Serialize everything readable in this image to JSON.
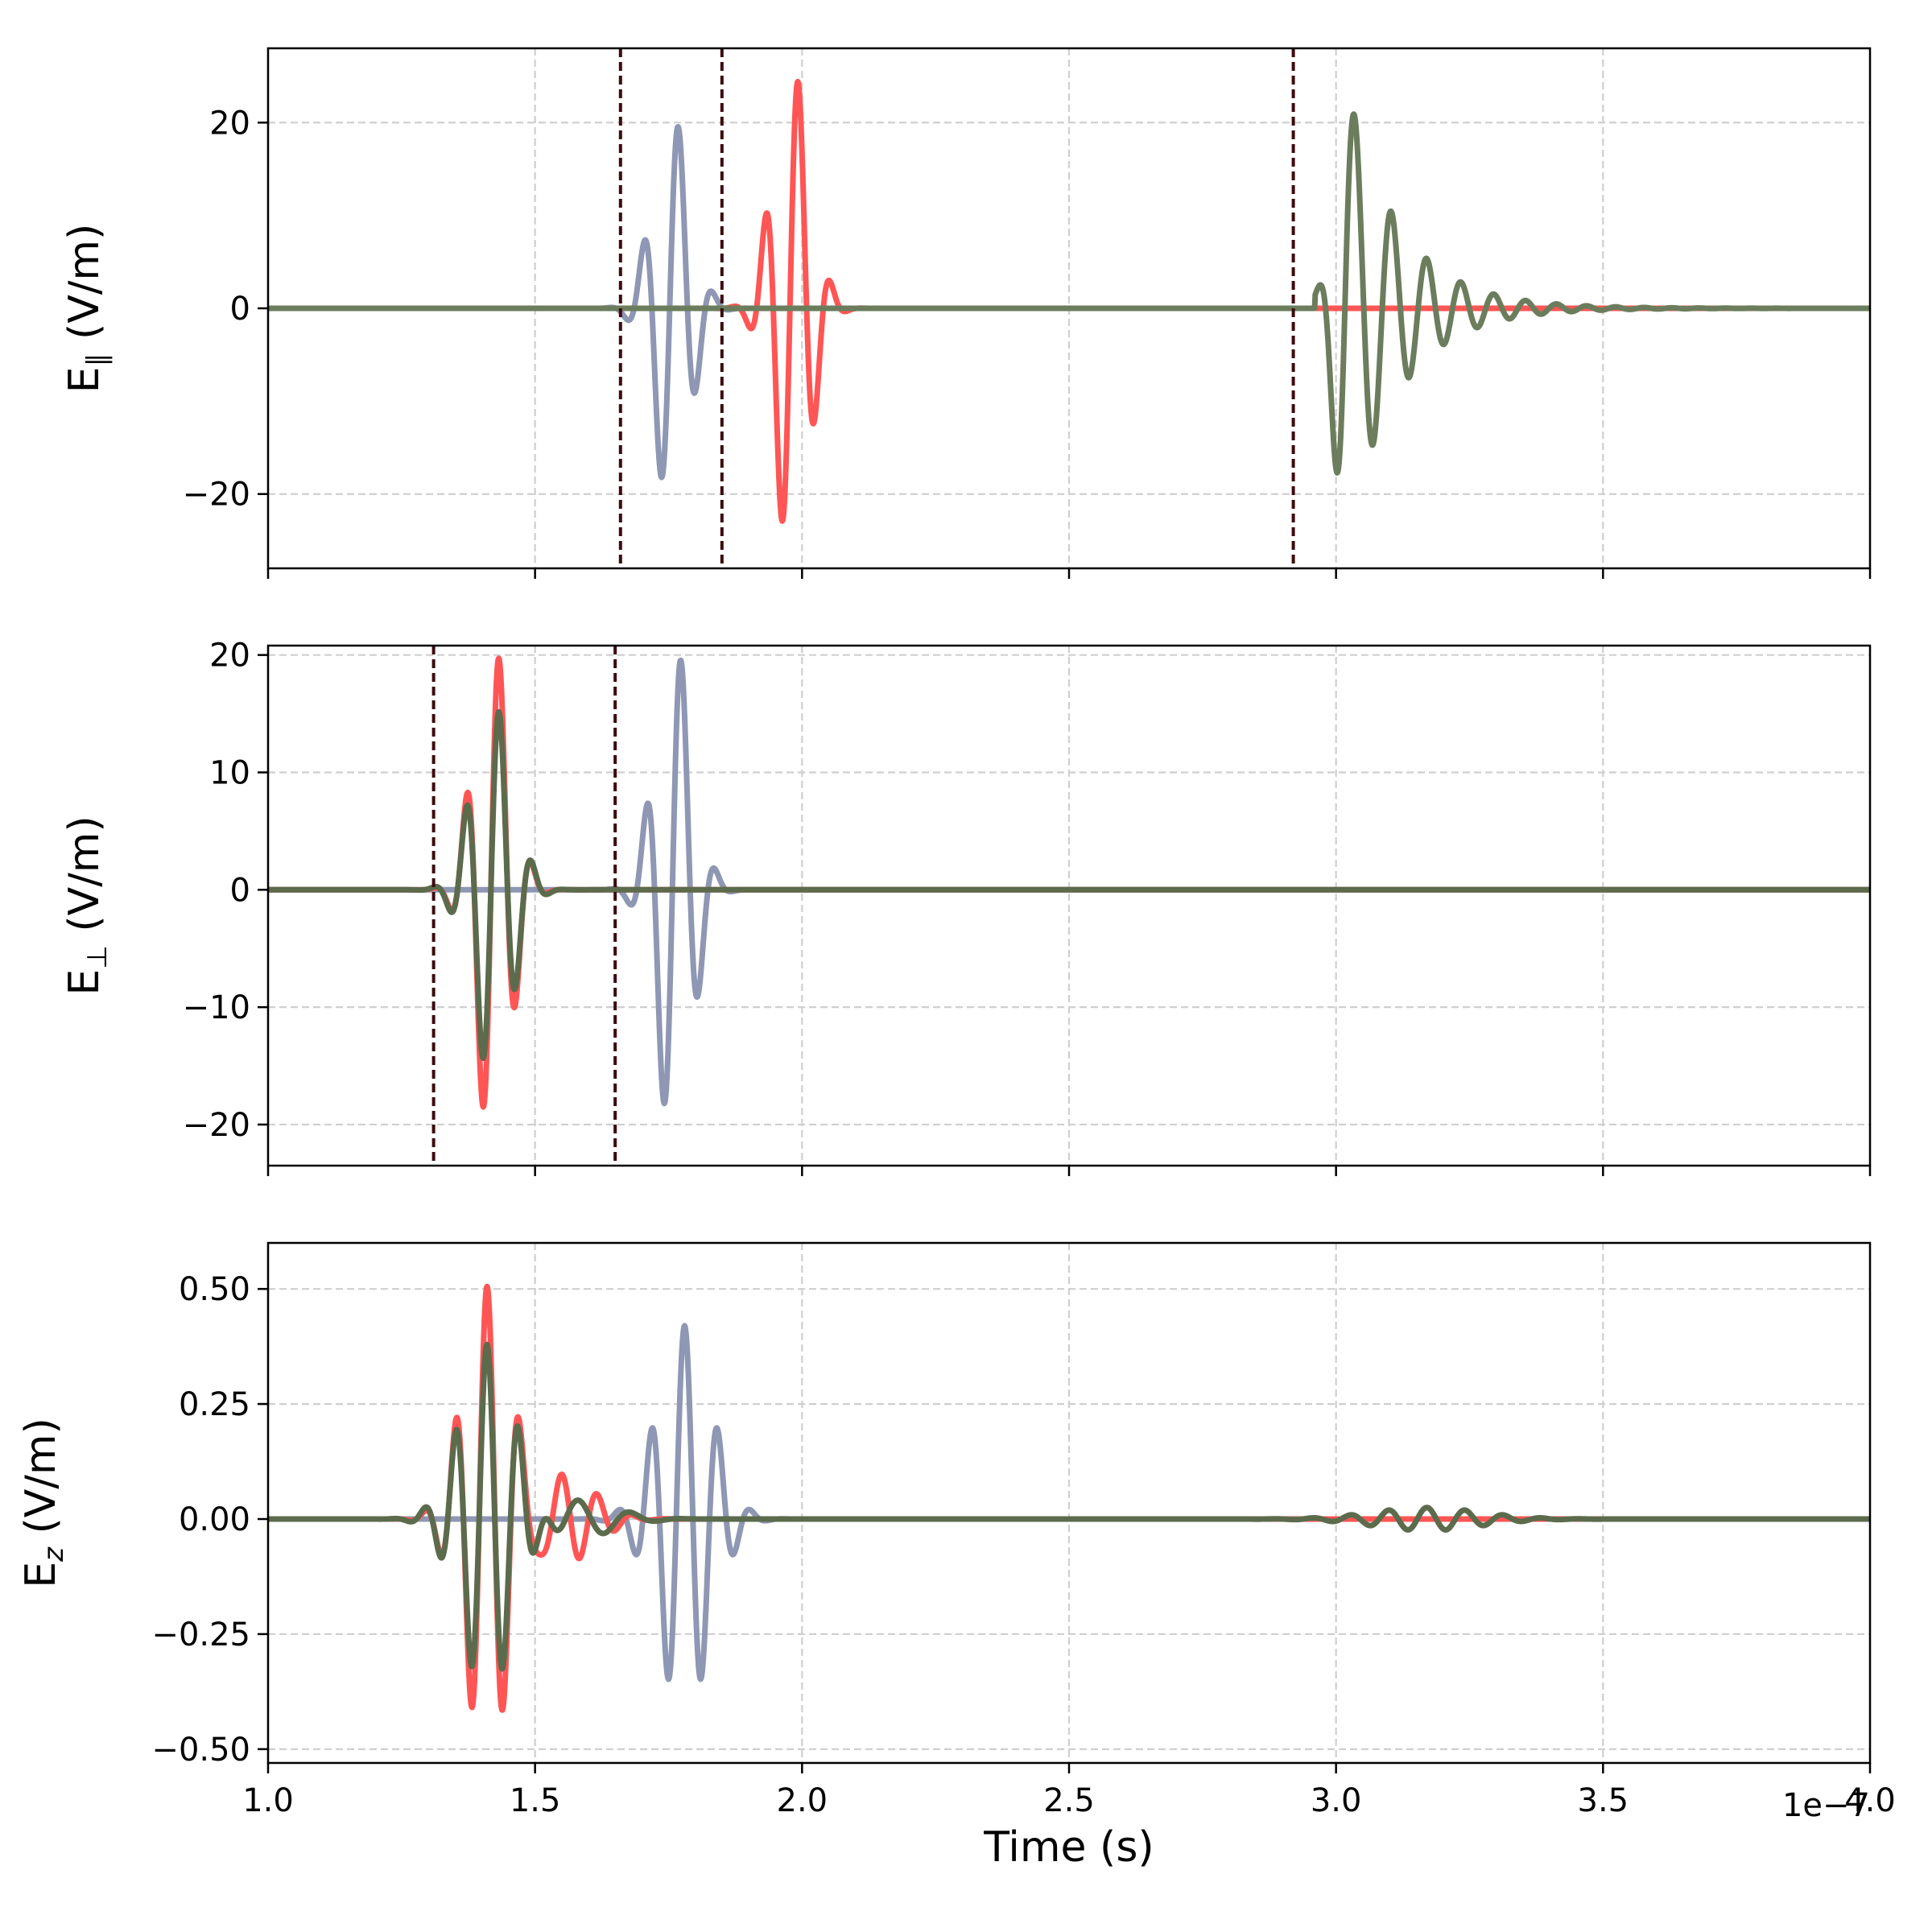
{
  "chart_data": [
    {
      "type": "line",
      "panel": "top",
      "ylabel_base": "E",
      "ylabel_sub": "∥",
      "ylabel_unit": " (V/m)",
      "xlim": [
        1.0,
        4.0
      ],
      "ylim": [
        -28,
        28
      ],
      "yticks": [
        -20,
        0,
        20
      ],
      "ytick_labels": [
        "−20",
        "0",
        "20"
      ],
      "grid": true,
      "vlines": [
        1.66,
        1.85,
        2.92
      ],
      "series": [
        {
          "color": "#8e97b3",
          "pulses": [
            {
              "t0": 1.755,
              "amp": 21,
              "f": 15,
              "sigma": 0.035,
              "phase": -1.3
            }
          ]
        },
        {
          "color": "#ff5555",
          "pulses": [
            {
              "t0": 1.98,
              "amp": 26,
              "f": 16,
              "sigma": 0.035,
              "phase": -1.3
            }
          ]
        },
        {
          "color": "#6b7d5c",
          "decay": {
            "t0": 3.02,
            "amp": 24,
            "f0": 14,
            "chirp": 9,
            "tau": 0.1
          }
        }
      ]
    },
    {
      "type": "line",
      "panel": "middle",
      "ylabel_base": "E",
      "ylabel_sub": "⊥",
      "ylabel_unit": " (V/m)",
      "xlim": [
        1.0,
        4.0
      ],
      "ylim": [
        -23.5,
        20.8
      ],
      "yticks": [
        -20,
        -10,
        0,
        10,
        20
      ],
      "ytick_labels": [
        "−20",
        "−10",
        "0",
        "10",
        "20"
      ],
      "grid": true,
      "vlines": [
        1.31,
        1.65
      ],
      "series": [
        {
          "color": "#8e97b3",
          "pulses": [
            {
              "t0": 1.76,
              "amp": 21,
              "f": 15,
              "sigma": 0.035,
              "phase": -1.3
            }
          ]
        },
        {
          "color": "#ff5555",
          "pulses": [
            {
              "t0": 1.42,
              "amp": 21,
              "f": 16,
              "sigma": 0.035,
              "phase": -1.3
            }
          ]
        },
        {
          "color": "#5b6b4c",
          "pulses": [
            {
              "t0": 1.42,
              "amp": 16,
              "f": 16,
              "sigma": 0.038,
              "phase": -1.3
            }
          ]
        }
      ]
    },
    {
      "type": "line",
      "panel": "bottom",
      "ylabel_base": "E",
      "ylabel_sub": "z",
      "ylabel_unit": " (V/m)",
      "xlabel": "Time (s)",
      "x_offset_label": "1e−7",
      "xlim": [
        1.0,
        4.0
      ],
      "ylim": [
        -0.53,
        0.6
      ],
      "yticks": [
        -0.5,
        -0.25,
        0.0,
        0.25,
        0.5
      ],
      "ytick_labels": [
        "−0.50",
        "−0.25",
        "0.00",
        "0.25",
        "0.50"
      ],
      "xticks": [
        1.0,
        1.5,
        2.0,
        2.5,
        3.0,
        3.5,
        4.0
      ],
      "xtick_labels": [
        "1.0",
        "1.5",
        "2.0",
        "2.5",
        "3.0",
        "3.5",
        "4.0"
      ],
      "grid": true,
      "vlines": [],
      "series": [
        {
          "color": "#8e97b3",
          "pulses": [
            {
              "t0": 1.78,
              "amp": 0.42,
              "f": 16,
              "sigma": 0.05,
              "phase": 0
            }
          ]
        },
        {
          "color": "#ff5555",
          "pulses": [
            {
              "t0": 1.41,
              "amp": 0.5,
              "f": 17,
              "sigma": 0.045,
              "phase": 0
            },
            {
              "t0": 1.55,
              "amp": 0.1,
              "f": 15,
              "sigma": 0.06,
              "phase": 0
            }
          ]
        },
        {
          "color": "#5b6b4c",
          "pulses": [
            {
              "t0": 1.41,
              "amp": 0.38,
              "f": 17,
              "sigma": 0.05,
              "phase": 0
            },
            {
              "t0": 1.58,
              "amp": 0.04,
              "f": 10,
              "sigma": 0.07,
              "phase": 0
            },
            {
              "t0": 3.17,
              "amp": 0.025,
              "f": 14,
              "sigma": 0.1,
              "phase": 0
            }
          ]
        }
      ]
    }
  ]
}
